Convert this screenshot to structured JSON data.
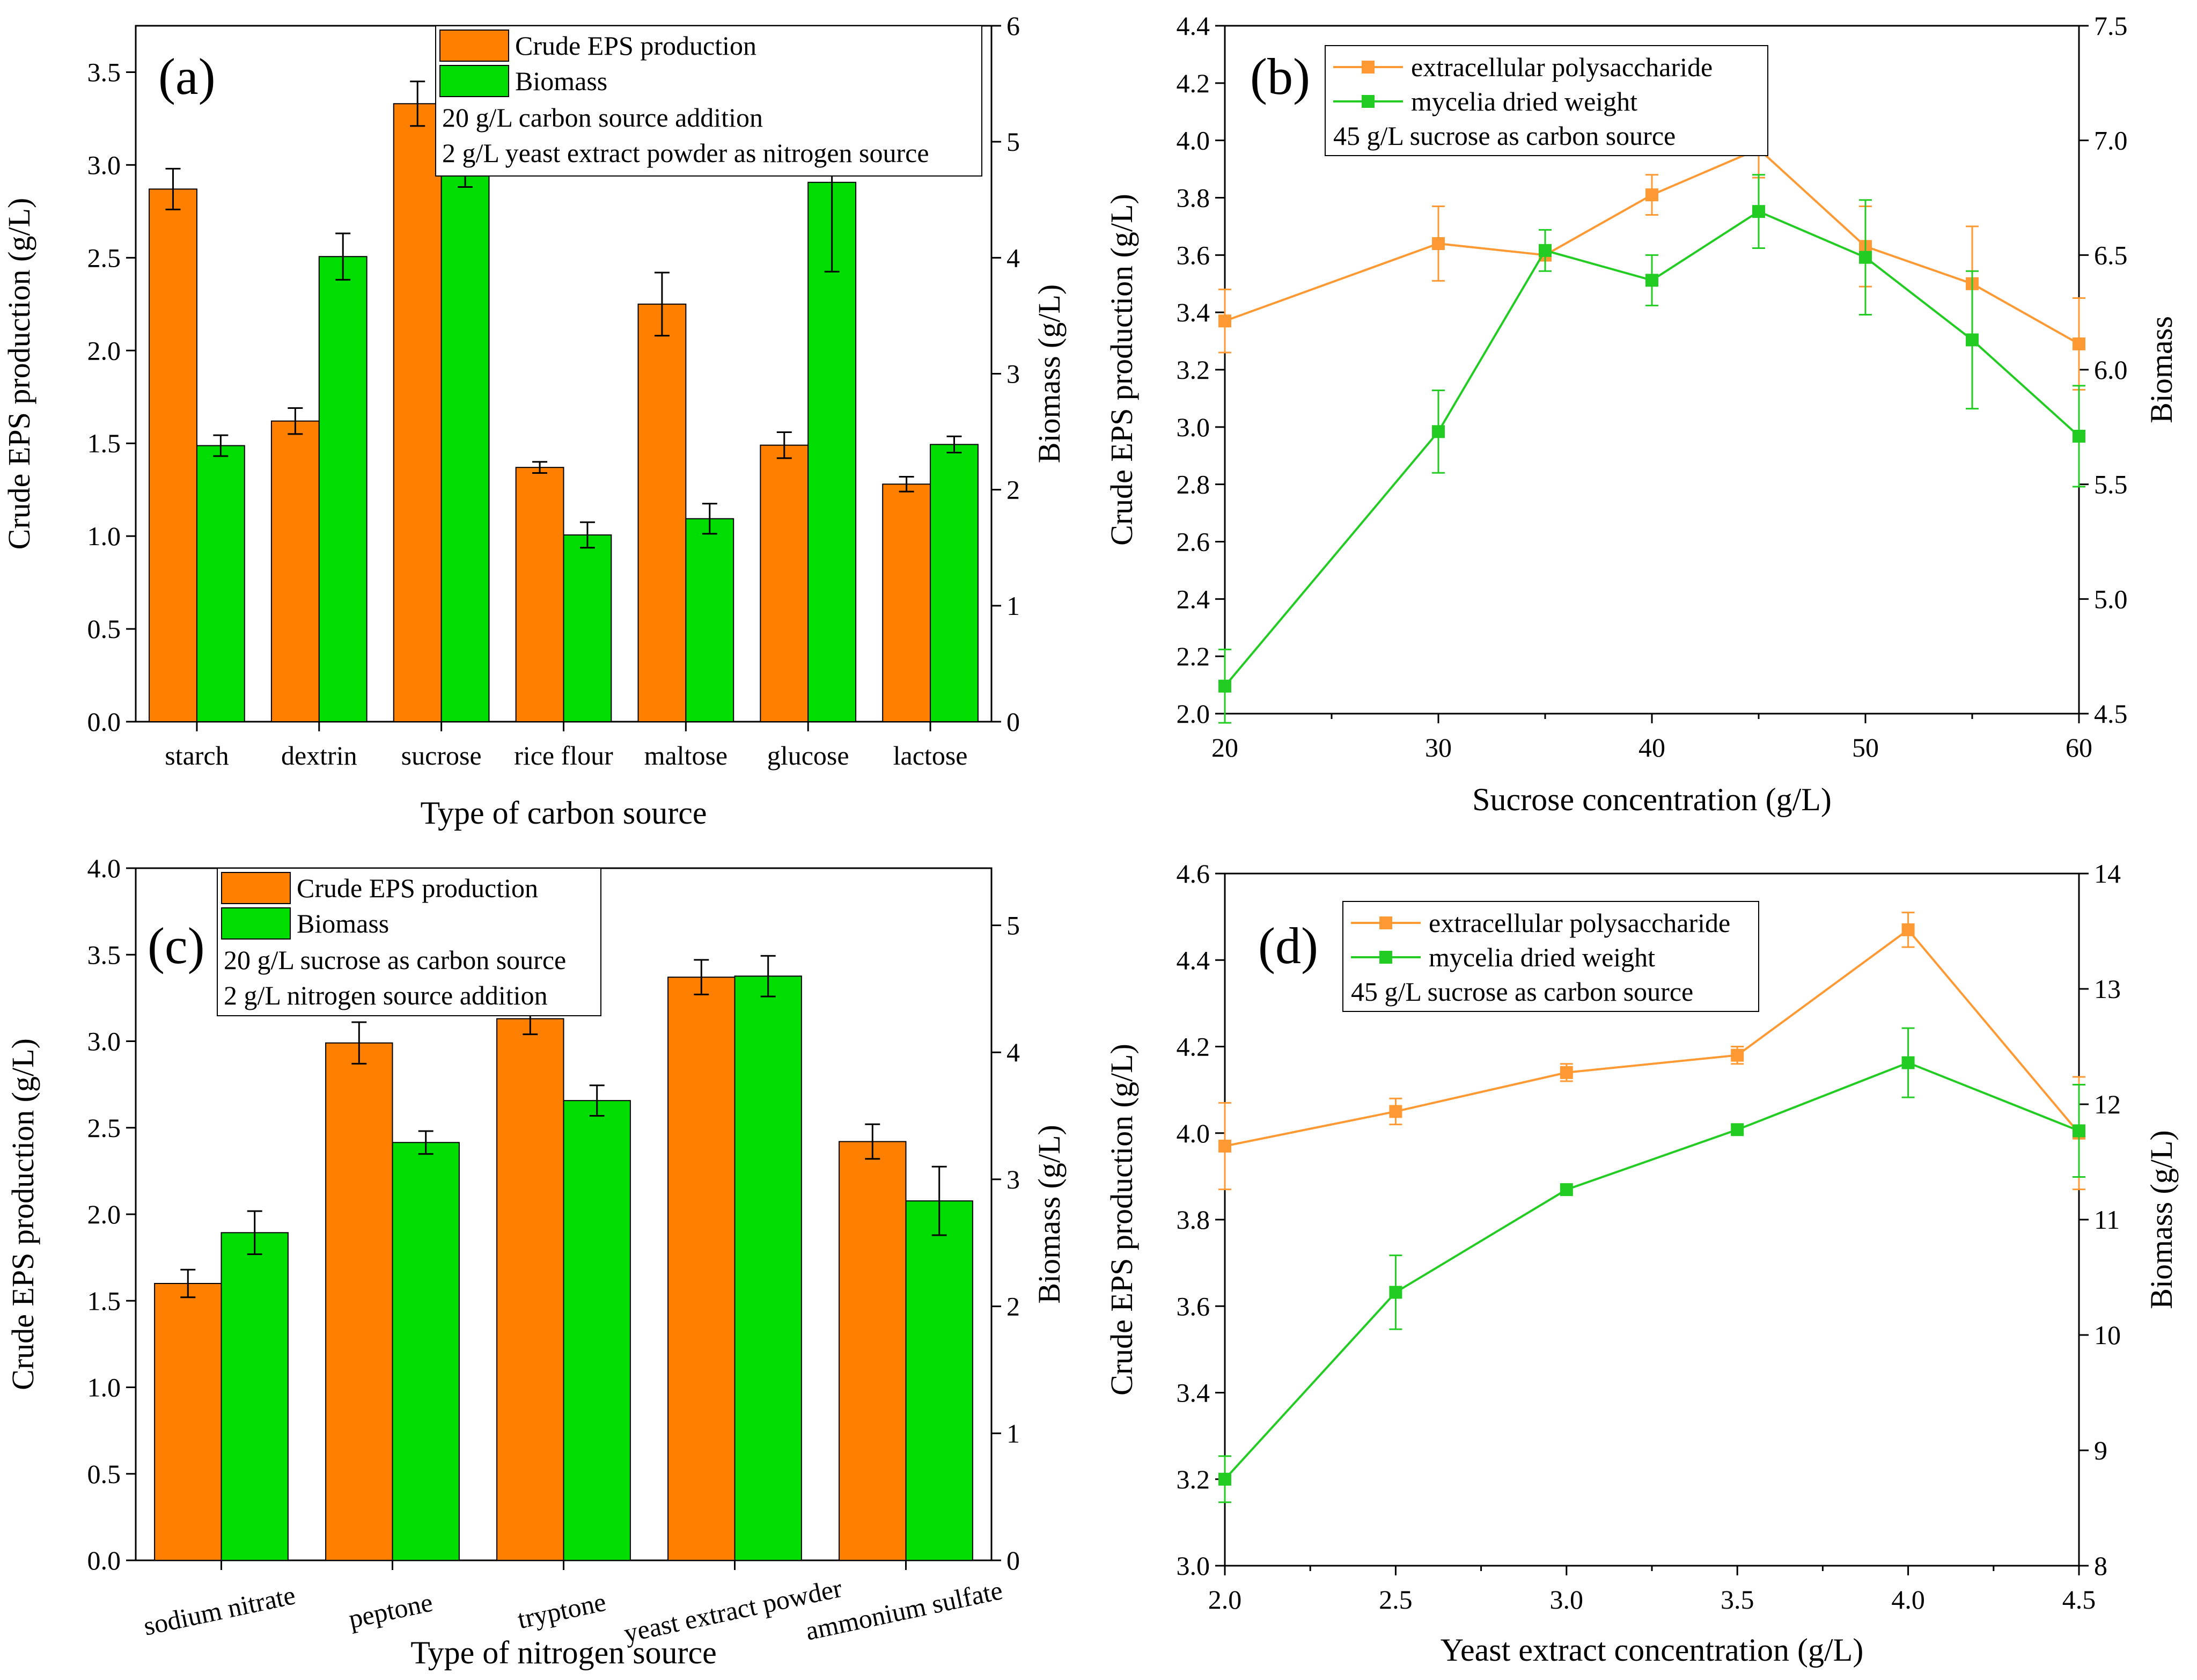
{
  "colors": {
    "eps": "#FF8000",
    "biomass": "#00DD00",
    "eps_line": "#FF9933",
    "biomass_line": "#22CC22",
    "axis": "#000000"
  },
  "chart_data": [
    {
      "panel": "(a)",
      "type": "bar",
      "categories": [
        "starch",
        "dextrin",
        "sucrose",
        "rice flour",
        "maltose",
        "glucose",
        "lactose"
      ],
      "xlabel": "Type of carbon source",
      "ylabel": "Crude EPS production (g/L)",
      "ylabel_right": "Biomass (g/L)",
      "ylim": [
        0,
        3.75
      ],
      "ylim_right": [
        0,
        6
      ],
      "yticks": [
        "0.0",
        "0.5",
        "1.0",
        "1.5",
        "2.0",
        "2.5",
        "3.0",
        "3.5"
      ],
      "yticks_right": [
        "0",
        "1",
        "2",
        "3",
        "4",
        "5",
        "6"
      ],
      "series": [
        {
          "name": "Crude EPS production",
          "axis": "left",
          "values": [
            2.87,
            1.62,
            3.33,
            1.37,
            2.25,
            1.49,
            1.28
          ],
          "errors": [
            0.11,
            0.07,
            0.12,
            0.03,
            0.17,
            0.07,
            0.04
          ]
        },
        {
          "name": "Biomass",
          "axis": "right",
          "values": [
            2.38,
            4.01,
            4.72,
            1.61,
            1.75,
            4.65,
            2.39
          ],
          "errors": [
            0.09,
            0.2,
            0.11,
            0.11,
            0.13,
            0.77,
            0.07
          ]
        }
      ],
      "legend_notes": [
        "20 g/L carbon source addition",
        "2 g/L yeast extract powder as nitrogen source"
      ]
    },
    {
      "panel": "(b)",
      "type": "line",
      "x": [
        20,
        30,
        35,
        40,
        45,
        50,
        55,
        60
      ],
      "xlabel": "Sucrose concentration (g/L)",
      "ylabel": "Crude EPS production (g/L)",
      "ylabel_right": "Biomass",
      "xlim": [
        20,
        60
      ],
      "ylim": [
        2.0,
        4.4
      ],
      "ylim_right": [
        4.5,
        7.5
      ],
      "xticks": [
        "20",
        "30",
        "40",
        "50",
        "60"
      ],
      "yticks": [
        "2.0",
        "2.2",
        "2.4",
        "2.6",
        "2.8",
        "3.0",
        "3.2",
        "3.4",
        "3.6",
        "3.8",
        "4.0",
        "4.2",
        "4.4"
      ],
      "yticks_right": [
        "4.5",
        "5.0",
        "5.5",
        "6.0",
        "6.5",
        "7.0",
        "7.5"
      ],
      "series": [
        {
          "name": "extracellular polysaccharide",
          "axis": "left",
          "values": [
            3.37,
            3.64,
            3.6,
            3.81,
            3.97,
            3.63,
            3.5,
            3.29
          ],
          "errors": [
            0.11,
            0.13,
            0.02,
            0.07,
            0.1,
            0.14,
            0.2,
            0.16
          ]
        },
        {
          "name": "mycelia dried weight",
          "axis": "right",
          "values": [
            4.62,
            5.73,
            6.52,
            6.39,
            6.69,
            6.49,
            6.13,
            5.71
          ],
          "errors": [
            0.16,
            0.18,
            0.09,
            0.11,
            0.16,
            0.25,
            0.3,
            0.22
          ]
        }
      ],
      "legend_notes": [
        "45 g/L sucrose as carbon source"
      ]
    },
    {
      "panel": "(c)",
      "type": "bar",
      "categories": [
        "sodium nitrate",
        "peptone",
        "tryptone",
        "yeast extract powder",
        "ammonium sulfate"
      ],
      "xlabel": "Type of nitrogen source",
      "ylabel": "Crude EPS production (g/L)",
      "ylabel_right": "Biomass (g/L)",
      "ylim": [
        0,
        4.0
      ],
      "ylim_right": [
        0,
        5.45
      ],
      "yticks": [
        "0.0",
        "0.5",
        "1.0",
        "1.5",
        "2.0",
        "2.5",
        "3.0",
        "3.5",
        "4.0"
      ],
      "yticks_right": [
        "0",
        "1",
        "2",
        "3",
        "4",
        "5"
      ],
      "series": [
        {
          "name": "Crude EPS production",
          "axis": "left",
          "values": [
            1.6,
            2.99,
            3.13,
            3.37,
            2.42
          ],
          "errors": [
            0.08,
            0.12,
            0.09,
            0.1,
            0.1
          ]
        },
        {
          "name": "Biomass",
          "axis": "right",
          "values": [
            2.58,
            3.29,
            3.62,
            4.6,
            2.83
          ],
          "errors": [
            0.17,
            0.09,
            0.12,
            0.16,
            0.27
          ]
        }
      ],
      "legend_notes": [
        "20 g/L sucrose as carbon source",
        "2 g/L nitrogen source addition"
      ]
    },
    {
      "panel": "(d)",
      "type": "line",
      "x": [
        2.0,
        2.5,
        3.0,
        3.5,
        4.0,
        4.5
      ],
      "xlabel": "Yeast extract concentration (g/L)",
      "ylabel": "Crude EPS production (g/L)",
      "ylabel_right": "Biomass (g/L)",
      "xlim": [
        2.0,
        4.5
      ],
      "ylim": [
        3.0,
        4.6
      ],
      "ylim_right": [
        8,
        14
      ],
      "xticks": [
        "2.0",
        "2.5",
        "3.0",
        "3.5",
        "4.0",
        "4.5"
      ],
      "yticks": [
        "3.0",
        "3.2",
        "3.4",
        "3.6",
        "3.8",
        "4.0",
        "4.2",
        "4.4",
        "4.6"
      ],
      "yticks_right": [
        "8",
        "9",
        "10",
        "11",
        "12",
        "13",
        "14"
      ],
      "series": [
        {
          "name": "extracellular polysaccharide",
          "axis": "left",
          "values": [
            3.97,
            4.05,
            4.14,
            4.18,
            4.47,
            4.0
          ],
          "errors": [
            0.1,
            0.03,
            0.02,
            0.02,
            0.04,
            0.13
          ]
        },
        {
          "name": "mycelia dried weight",
          "axis": "right",
          "values": [
            8.75,
            10.37,
            11.26,
            11.78,
            12.36,
            11.77
          ],
          "errors": [
            0.2,
            0.32,
            0.03,
            0.04,
            0.3,
            0.4
          ]
        }
      ],
      "legend_notes": [
        "45 g/L sucrose as carbon source"
      ]
    }
  ]
}
